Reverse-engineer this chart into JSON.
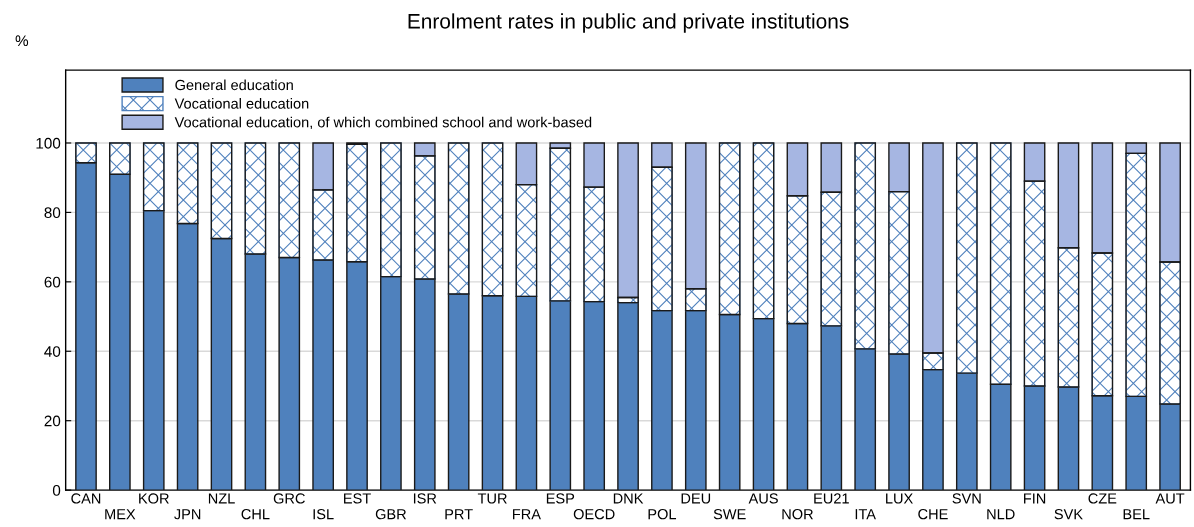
{
  "chart_data": {
    "type": "bar",
    "title": "Enrolment rates in public and private institutions",
    "ylabel": "%",
    "stacked": true,
    "categories": [
      "CAN",
      "MEX",
      "KOR",
      "JPN",
      "NZL",
      "CHL",
      "GRC",
      "ISL",
      "EST",
      "GBR",
      "ISR",
      "PRT",
      "TUR",
      "FRA",
      "ESP",
      "OECD",
      "DNK",
      "POL",
      "DEU",
      "SWE",
      "AUS",
      "NOR",
      "EU21",
      "ITA",
      "LUX",
      "CHE",
      "SVN",
      "NLD",
      "FIN",
      "SVK",
      "CZE",
      "BEL",
      "AUT"
    ],
    "series": [
      {
        "name": "General education",
        "color": "#4f81bd",
        "values": [
          94.3,
          91,
          80.5,
          76.8,
          72.5,
          68,
          67,
          66.3,
          65.8,
          61.5,
          60.8,
          56.5,
          56,
          55.8,
          54.5,
          54.3,
          54,
          51.7,
          51.7,
          50.6,
          49.4,
          48,
          47.3,
          40.7,
          39.2,
          34.7,
          33.7,
          30.5,
          30,
          29.7,
          27.2,
          27,
          24.8
        ]
      },
      {
        "name": "Vocational education",
        "color": "#4f81bd",
        "values": [
          5.7,
          9,
          19.5,
          23.2,
          27.5,
          32,
          33,
          20.2,
          33.8,
          38.5,
          35.5,
          43.5,
          44,
          32.2,
          44,
          33,
          1.5,
          41.3,
          6.3,
          49.4,
          50.6,
          36.8,
          38.5,
          59.3,
          46.8,
          4.8,
          66.3,
          69.5,
          59,
          40.1,
          41.1,
          70,
          40.9
        ]
      },
      {
        "name": "Vocational education, of which combined school and work-based",
        "color": "#a6b6e2",
        "values": [
          0,
          0,
          0,
          0,
          0,
          0,
          0,
          13.5,
          0.4,
          0,
          3.7,
          0,
          0,
          12,
          1.5,
          12.7,
          44.5,
          7,
          42,
          0,
          0,
          15.2,
          14.2,
          0,
          14,
          60.5,
          0,
          0,
          11,
          30.2,
          31.7,
          3,
          34.3
        ]
      }
    ],
    "ylim": [
      0,
      121
    ],
    "yticks": [
      0,
      20,
      40,
      60,
      80,
      100
    ],
    "grid": "y",
    "legend": "top left"
  }
}
